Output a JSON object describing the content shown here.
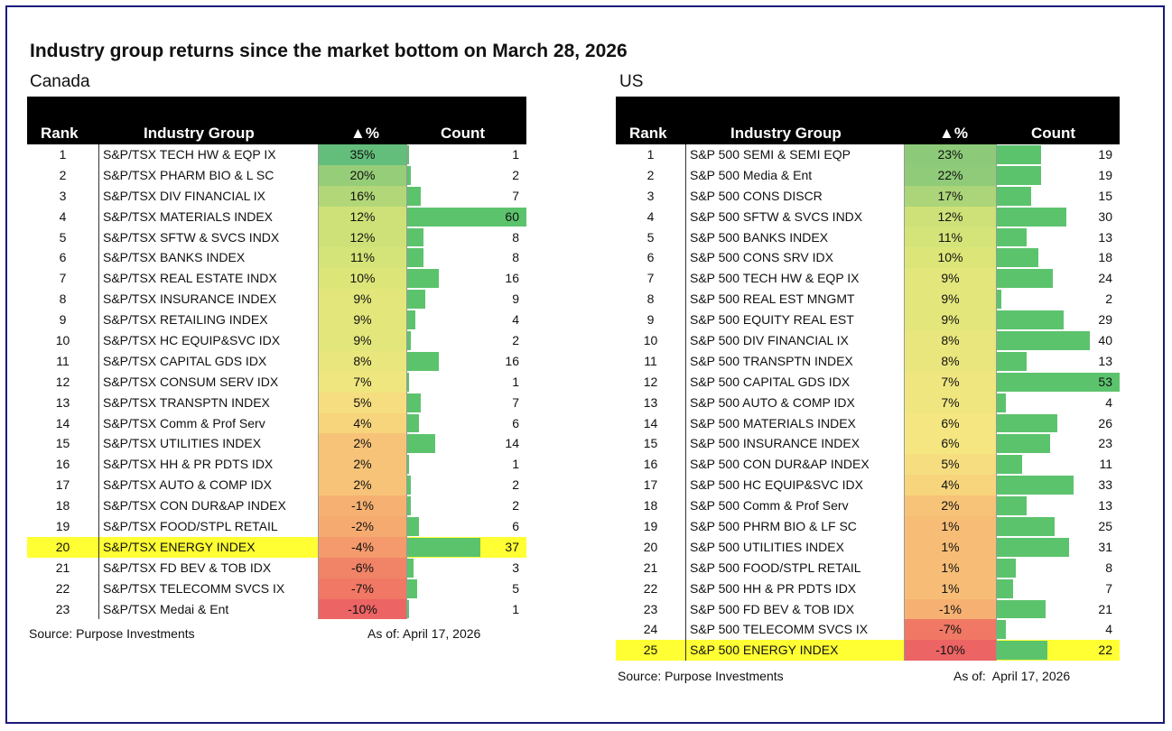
{
  "title": "Industry group returns since the market bottom on March 28, 2026",
  "columns": {
    "rank": "Rank",
    "group": "Industry Group",
    "pct": "▲%",
    "count": "Count"
  },
  "canada": {
    "label": "Canada",
    "source": "Source: Purpose Investments",
    "asof": "As of: April 17, 2026",
    "max_count": 60,
    "highlight_rank": 20,
    "rows": [
      {
        "rank": "1",
        "name": "S&P/TSX TECH HW & EQP IX",
        "pct": "35%",
        "pct_val": 35,
        "count": 1
      },
      {
        "rank": "2",
        "name": "S&P/TSX PHARM BIO & L SC",
        "pct": "20%",
        "pct_val": 20,
        "count": 2
      },
      {
        "rank": "3",
        "name": "S&P/TSX DIV FINANCIAL IX",
        "pct": "16%",
        "pct_val": 16,
        "count": 7
      },
      {
        "rank": "4",
        "name": "S&P/TSX MATERIALS INDEX",
        "pct": "12%",
        "pct_val": 12,
        "count": 60
      },
      {
        "rank": "5",
        "name": "S&P/TSX SFTW & SVCS INDX",
        "pct": "12%",
        "pct_val": 12,
        "count": 8
      },
      {
        "rank": "6",
        "name": "S&P/TSX BANKS INDEX",
        "pct": "11%",
        "pct_val": 11,
        "count": 8
      },
      {
        "rank": "7",
        "name": "S&P/TSX REAL ESTATE INDX",
        "pct": "10%",
        "pct_val": 10,
        "count": 16
      },
      {
        "rank": "8",
        "name": "S&P/TSX INSURANCE INDEX",
        "pct": "9%",
        "pct_val": 9,
        "count": 9
      },
      {
        "rank": "9",
        "name": "S&P/TSX RETAILING INDEX",
        "pct": "9%",
        "pct_val": 9,
        "count": 4
      },
      {
        "rank": "10",
        "name": "S&P/TSX HC EQUIP&SVC IDX",
        "pct": "9%",
        "pct_val": 9,
        "count": 2
      },
      {
        "rank": "11",
        "name": "S&P/TSX CAPITAL GDS IDX",
        "pct": "8%",
        "pct_val": 8,
        "count": 16
      },
      {
        "rank": "12",
        "name": "S&P/TSX CONSUM SERV IDX",
        "pct": "7%",
        "pct_val": 7,
        "count": 1
      },
      {
        "rank": "13",
        "name": "S&P/TSX TRANSPTN INDEX",
        "pct": "5%",
        "pct_val": 5,
        "count": 7
      },
      {
        "rank": "14",
        "name": "S&P/TSX Comm & Prof Serv",
        "pct": "4%",
        "pct_val": 4,
        "count": 6
      },
      {
        "rank": "15",
        "name": "S&P/TSX UTILITIES INDEX",
        "pct": "2%",
        "pct_val": 2,
        "count": 14
      },
      {
        "rank": "16",
        "name": "S&P/TSX HH & PR PDTS IDX",
        "pct": "2%",
        "pct_val": 2,
        "count": 1
      },
      {
        "rank": "17",
        "name": "S&P/TSX AUTO & COMP IDX",
        "pct": "2%",
        "pct_val": 2,
        "count": 2
      },
      {
        "rank": "18",
        "name": "S&P/TSX CON DUR&AP INDEX",
        "pct": "-1%",
        "pct_val": -1,
        "count": 2
      },
      {
        "rank": "19",
        "name": "S&P/TSX FOOD/STPL RETAIL",
        "pct": "-2%",
        "pct_val": -2,
        "count": 6
      },
      {
        "rank": "20",
        "name": "S&P/TSX ENERGY INDEX",
        "pct": "-4%",
        "pct_val": -4,
        "count": 37
      },
      {
        "rank": "21",
        "name": "S&P/TSX FD BEV & TOB IDX",
        "pct": "-6%",
        "pct_val": -6,
        "count": 3
      },
      {
        "rank": "22",
        "name": "S&P/TSX TELECOMM SVCS IX",
        "pct": "-7%",
        "pct_val": -7,
        "count": 5
      },
      {
        "rank": "23",
        "name": "S&P/TSX Medai & Ent",
        "pct": "-10%",
        "pct_val": -10,
        "count": 1
      }
    ]
  },
  "us": {
    "label": "US",
    "source": "Source: Purpose Investments",
    "asof": "As of:  April 17, 2026",
    "max_count": 53,
    "highlight_rank": 25,
    "rows": [
      {
        "rank": "1",
        "name": "S&P 500 SEMI & SEMI EQP",
        "pct": "23%",
        "pct_val": 23,
        "count": 19
      },
      {
        "rank": "2",
        "name": "S&P 500 Media & Ent",
        "pct": "22%",
        "pct_val": 22,
        "count": 19
      },
      {
        "rank": "3",
        "name": "S&P 500 CONS DISCR",
        "pct": "17%",
        "pct_val": 17,
        "count": 15
      },
      {
        "rank": "4",
        "name": "S&P 500 SFTW & SVCS INDX",
        "pct": "12%",
        "pct_val": 12,
        "count": 30
      },
      {
        "rank": "5",
        "name": "S&P 500 BANKS INDEX",
        "pct": "11%",
        "pct_val": 11,
        "count": 13
      },
      {
        "rank": "6",
        "name": "S&P 500 CONS SRV IDX",
        "pct": "10%",
        "pct_val": 10,
        "count": 18
      },
      {
        "rank": "7",
        "name": "S&P 500 TECH HW & EQP IX",
        "pct": "9%",
        "pct_val": 9,
        "count": 24
      },
      {
        "rank": "8",
        "name": "S&P 500 REAL EST MNGMT",
        "pct": "9%",
        "pct_val": 9,
        "count": 2
      },
      {
        "rank": "9",
        "name": "S&P 500 EQUITY REAL EST",
        "pct": "9%",
        "pct_val": 9,
        "count": 29
      },
      {
        "rank": "10",
        "name": "S&P 500 DIV FINANCIAL IX",
        "pct": "8%",
        "pct_val": 8,
        "count": 40
      },
      {
        "rank": "11",
        "name": "S&P 500 TRANSPTN INDEX",
        "pct": "8%",
        "pct_val": 8,
        "count": 13
      },
      {
        "rank": "12",
        "name": "S&P 500 CAPITAL GDS IDX",
        "pct": "7%",
        "pct_val": 7,
        "count": 53
      },
      {
        "rank": "13",
        "name": "S&P 500 AUTO & COMP IDX",
        "pct": "7%",
        "pct_val": 7,
        "count": 4
      },
      {
        "rank": "14",
        "name": "S&P 500 MATERIALS INDEX",
        "pct": "6%",
        "pct_val": 6,
        "count": 26
      },
      {
        "rank": "15",
        "name": "S&P 500 INSURANCE INDEX",
        "pct": "6%",
        "pct_val": 6,
        "count": 23
      },
      {
        "rank": "16",
        "name": "S&P 500 CON DUR&AP INDEX",
        "pct": "5%",
        "pct_val": 5,
        "count": 11
      },
      {
        "rank": "17",
        "name": "S&P 500 HC EQUIP&SVC IDX",
        "pct": "4%",
        "pct_val": 4,
        "count": 33
      },
      {
        "rank": "18",
        "name": "S&P 500 Comm & Prof Serv",
        "pct": "2%",
        "pct_val": 2,
        "count": 13
      },
      {
        "rank": "19",
        "name": "S&P 500 PHRM BIO & LF SC",
        "pct": "1%",
        "pct_val": 1,
        "count": 25
      },
      {
        "rank": "20",
        "name": "S&P 500 UTILITIES INDEX",
        "pct": "1%",
        "pct_val": 1,
        "count": 31
      },
      {
        "rank": "21",
        "name": "S&P 500 FOOD/STPL RETAIL",
        "pct": "1%",
        "pct_val": 1,
        "count": 8
      },
      {
        "rank": "22",
        "name": "S&P 500 HH & PR PDTS IDX",
        "pct": "1%",
        "pct_val": 1,
        "count": 7
      },
      {
        "rank": "23",
        "name": "S&P 500 FD BEV & TOB IDX",
        "pct": "-1%",
        "pct_val": -1,
        "count": 21
      },
      {
        "rank": "24",
        "name": "S&P 500 TELECOMM SVCS IX",
        "pct": "-7%",
        "pct_val": -7,
        "count": 4
      },
      {
        "rank": "25",
        "name": "S&P 500 ENERGY INDEX",
        "pct": "-10%",
        "pct_val": -10,
        "count": 22
      }
    ]
  }
}
